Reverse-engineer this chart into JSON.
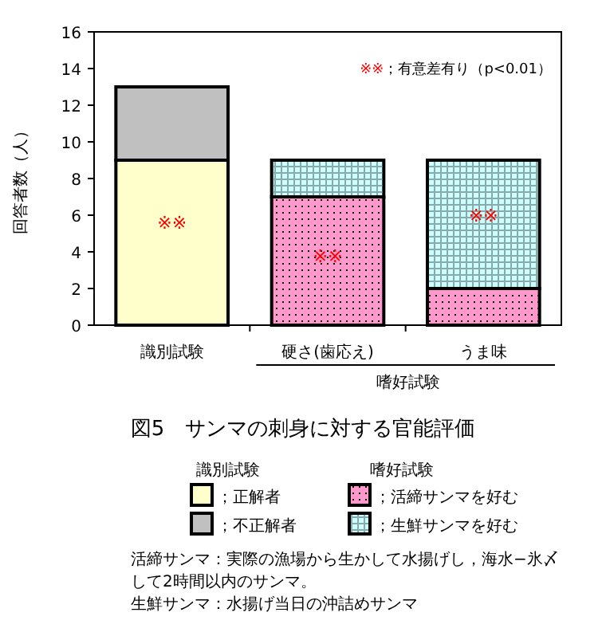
{
  "chart_data": {
    "type": "bar",
    "stacked": true,
    "title": "図5　サンマの刺身に対する官能評価",
    "ylabel": "回答者数（人）",
    "categories": [
      "識別試験",
      "硬さ(歯応え)",
      "うま味"
    ],
    "series": [
      {
        "name": "；正解者",
        "color": "#ffffcc",
        "values": [
          9,
          null,
          null
        ]
      },
      {
        "name": "；不正解者",
        "color": "#c0c0c0",
        "values": [
          4,
          null,
          null
        ]
      },
      {
        "name": "；活締サンマを好む",
        "color": "#ff99cc",
        "values": [
          null,
          7,
          2
        ]
      },
      {
        "name": "；生鮮サンマを好む",
        "color": "#ccffff",
        "values": [
          null,
          2,
          7
        ]
      }
    ],
    "ylim": [
      0,
      16
    ],
    "yticks": [
      0,
      2,
      4,
      6,
      8,
      10,
      12,
      14,
      16
    ],
    "grid": false,
    "legend": "bottom",
    "annotations": [
      "※※；有意差有り（p<0.01）",
      "※※",
      "※※",
      "※※",
      "嗜好試験",
      "識別試験",
      "嗜好試験",
      "活締サンマ：実際の漁場から生かして水揚げし，海水−氷〆して2時間以内のサンマ。",
      "生鮮サンマ：水揚げ当日の沖詰めサンマ"
    ]
  }
}
